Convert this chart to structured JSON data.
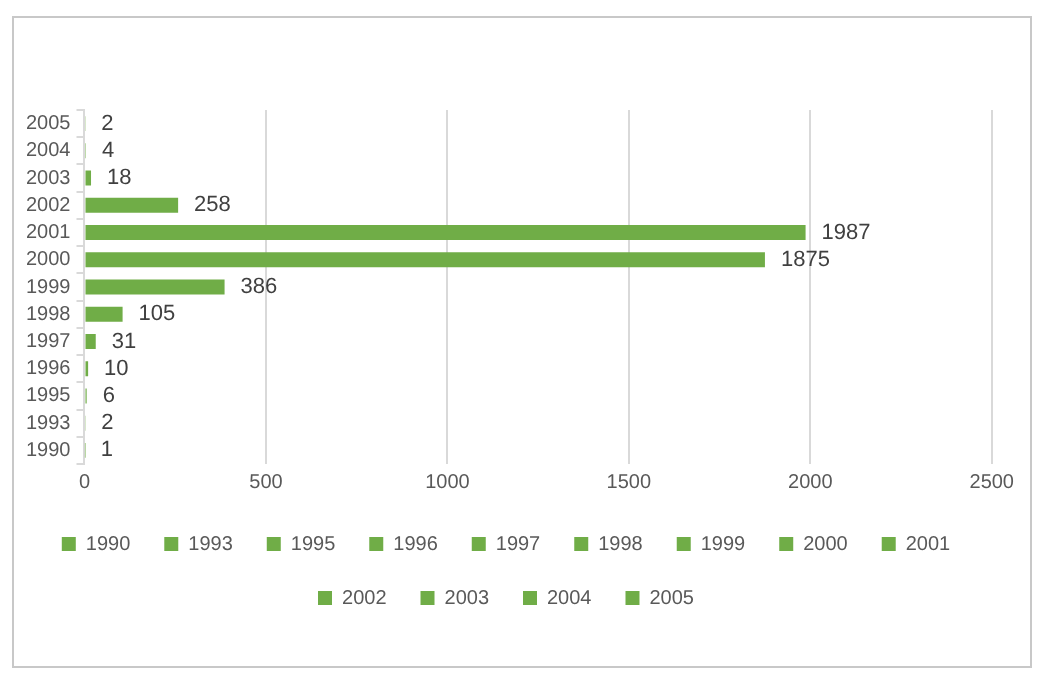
{
  "chart_data": {
    "type": "bar",
    "orientation": "horizontal",
    "stacked": true,
    "categories": [
      "2005",
      "2004",
      "2003",
      "2002",
      "2001",
      "2000",
      "1999",
      "1998",
      "1997",
      "1996",
      "1995",
      "1993",
      "1990"
    ],
    "series": [
      {
        "name": "1990",
        "color": "#70ad47",
        "values": [
          null,
          null,
          null,
          null,
          null,
          null,
          null,
          null,
          null,
          null,
          null,
          null,
          1
        ]
      },
      {
        "name": "1993",
        "color": "#70ad47",
        "values": [
          null,
          null,
          null,
          null,
          null,
          null,
          null,
          null,
          null,
          null,
          null,
          2,
          null
        ]
      },
      {
        "name": "1995",
        "color": "#70ad47",
        "values": [
          null,
          null,
          null,
          null,
          null,
          null,
          null,
          null,
          null,
          null,
          6,
          null,
          null
        ]
      },
      {
        "name": "1996",
        "color": "#70ad47",
        "values": [
          null,
          null,
          null,
          null,
          null,
          null,
          null,
          null,
          null,
          10,
          null,
          null,
          null
        ]
      },
      {
        "name": "1997",
        "color": "#70ad47",
        "values": [
          null,
          null,
          null,
          null,
          null,
          null,
          null,
          null,
          31,
          null,
          null,
          null,
          null
        ]
      },
      {
        "name": "1998",
        "color": "#70ad47",
        "values": [
          null,
          null,
          null,
          null,
          null,
          null,
          null,
          105,
          null,
          null,
          null,
          null,
          null
        ]
      },
      {
        "name": "1999",
        "color": "#70ad47",
        "values": [
          null,
          null,
          null,
          null,
          null,
          null,
          386,
          null,
          null,
          null,
          null,
          null,
          null
        ]
      },
      {
        "name": "2000",
        "color": "#70ad47",
        "values": [
          null,
          null,
          null,
          null,
          null,
          1875,
          null,
          null,
          null,
          null,
          null,
          null,
          null
        ]
      },
      {
        "name": "2001",
        "color": "#70ad47",
        "values": [
          null,
          null,
          null,
          null,
          1987,
          null,
          null,
          null,
          null,
          null,
          null,
          null,
          null
        ]
      },
      {
        "name": "2002",
        "color": "#70ad47",
        "values": [
          null,
          null,
          null,
          258,
          null,
          null,
          null,
          null,
          null,
          null,
          null,
          null,
          null
        ]
      },
      {
        "name": "2003",
        "color": "#70ad47",
        "values": [
          null,
          null,
          18,
          null,
          null,
          null,
          null,
          null,
          null,
          null,
          null,
          null,
          null
        ]
      },
      {
        "name": "2004",
        "color": "#70ad47",
        "values": [
          null,
          4,
          null,
          null,
          null,
          null,
          null,
          null,
          null,
          null,
          null,
          null,
          null
        ]
      },
      {
        "name": "2005",
        "color": "#70ad47",
        "values": [
          2,
          null,
          null,
          null,
          null,
          null,
          null,
          null,
          null,
          null,
          null,
          null,
          null
        ]
      }
    ],
    "xlim": [
      0,
      2500
    ],
    "xticks": [
      0,
      500,
      1000,
      1500,
      2000,
      2500
    ],
    "grid": "x",
    "legend": "bottom",
    "data_labels": true
  }
}
